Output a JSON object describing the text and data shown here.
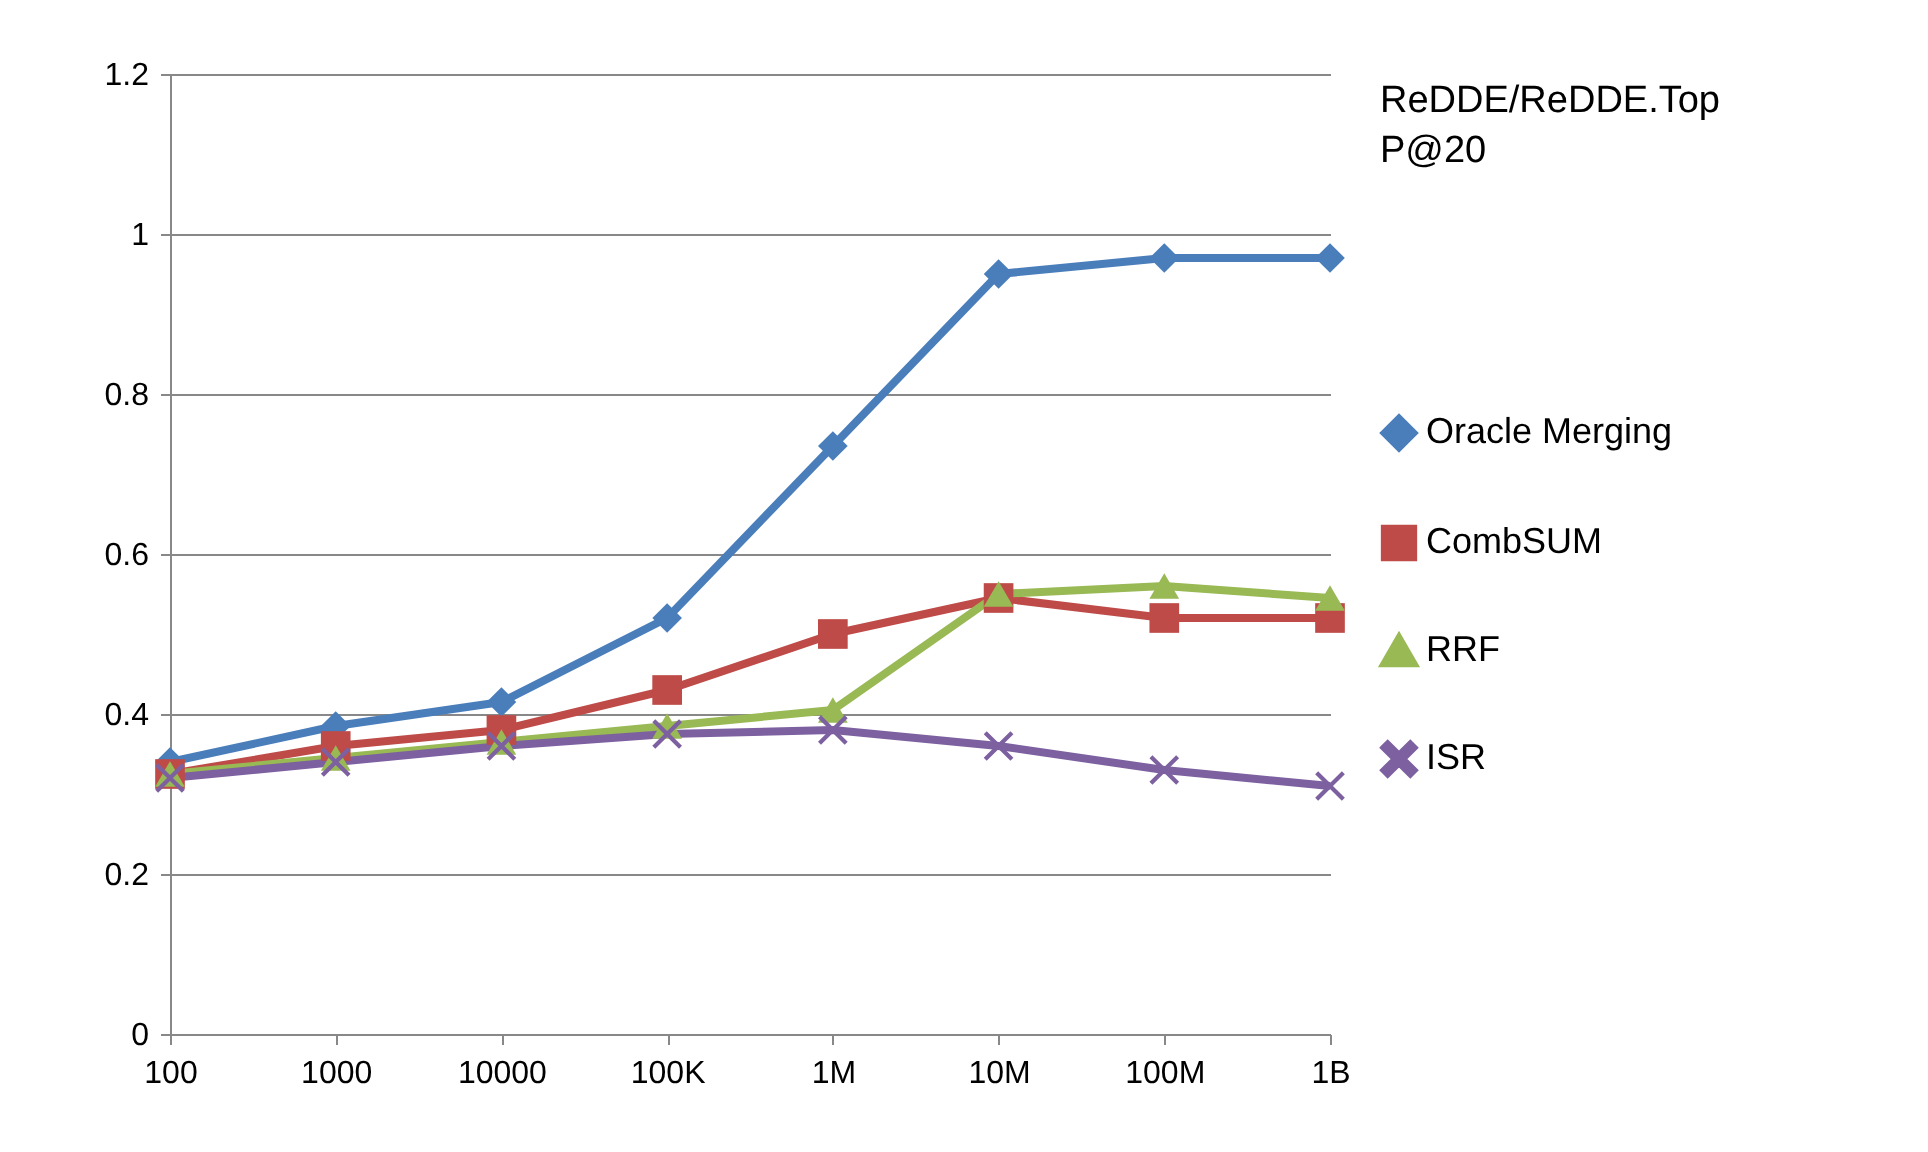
{
  "chart_data": {
    "type": "line",
    "title": "ReDDE/ReDDE.Top",
    "subtitle": "P@20",
    "categories": [
      "100",
      "1000",
      "10000",
      "100K",
      "1M",
      "10M",
      "100M",
      "1B"
    ],
    "series": [
      {
        "name": "Oracle Merging",
        "color": "#4a7ebb",
        "marker": "diamond",
        "values": [
          0.34,
          0.385,
          0.415,
          0.52,
          0.735,
          0.95,
          0.97,
          0.97
        ]
      },
      {
        "name": "CombSUM",
        "color": "#be4b48",
        "marker": "square",
        "values": [
          0.325,
          0.36,
          0.38,
          0.43,
          0.5,
          0.545,
          0.52,
          0.52
        ]
      },
      {
        "name": "RRF",
        "color": "#98b954",
        "marker": "triangle",
        "values": [
          0.325,
          0.345,
          0.365,
          0.385,
          0.405,
          0.55,
          0.56,
          0.545
        ]
      },
      {
        "name": "ISR",
        "color": "#7d60a0",
        "marker": "cross",
        "values": [
          0.32,
          0.34,
          0.36,
          0.375,
          0.38,
          0.36,
          0.33,
          0.31
        ]
      }
    ],
    "ylim": [
      0,
      1.2
    ],
    "yticks": [
      0,
      0.2,
      0.4,
      0.6,
      0.8,
      1,
      1.2
    ],
    "grid": "y",
    "legend": "right",
    "line_style": "solid"
  }
}
